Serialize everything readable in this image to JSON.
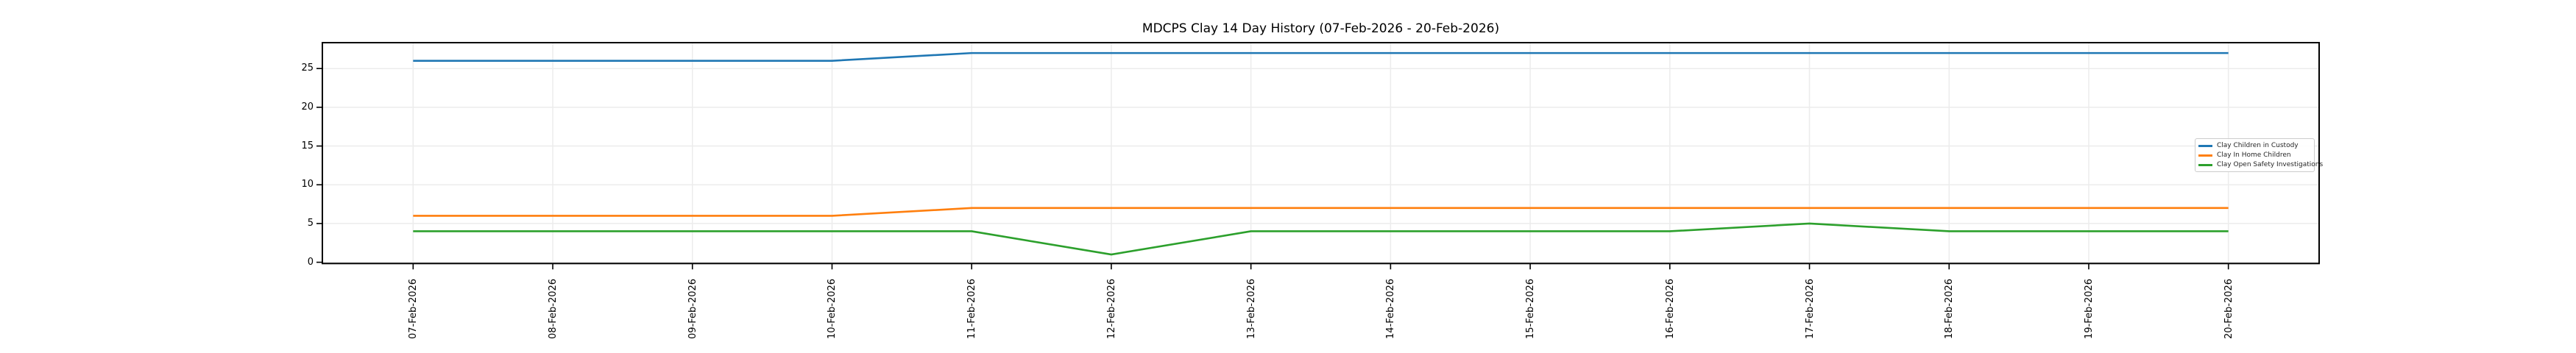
{
  "title": "MDCPS Clay 14 Day History (07-Feb-2026 - 20-Feb-2026)",
  "colors": {
    "background": "#ffffff",
    "spine": "#000000",
    "grid": "#ececec",
    "tick": "#000000",
    "legend_border": "#cccccc"
  },
  "chart_data": {
    "type": "line",
    "title": "MDCPS Clay 14 Day History (07-Feb-2026 - 20-Feb-2026)",
    "categories": [
      "07-Feb-2026",
      "08-Feb-2026",
      "09-Feb-2026",
      "10-Feb-2026",
      "11-Feb-2026",
      "12-Feb-2026",
      "13-Feb-2026",
      "14-Feb-2026",
      "15-Feb-2026",
      "16-Feb-2026",
      "17-Feb-2026",
      "18-Feb-2026",
      "19-Feb-2026",
      "20-Feb-2026"
    ],
    "series": [
      {
        "name": "Clay Children in Custody",
        "color": "#1f77b4",
        "values": [
          26,
          26,
          26,
          26,
          27,
          27,
          27,
          27,
          27,
          27,
          27,
          27,
          27,
          27
        ]
      },
      {
        "name": "Clay In Home Children",
        "color": "#ff7f0e",
        "values": [
          6,
          6,
          6,
          6,
          7,
          7,
          7,
          7,
          7,
          7,
          7,
          7,
          7,
          7
        ]
      },
      {
        "name": "Clay Open Safety Investigations",
        "color": "#2ca02c",
        "values": [
          4,
          4,
          4,
          4,
          4,
          1,
          4,
          4,
          4,
          4,
          5,
          4,
          4,
          4
        ]
      }
    ],
    "xlabel": "",
    "ylabel": "",
    "yticks": [
      0,
      5,
      10,
      15,
      20,
      25
    ],
    "ylim": [
      -0.16,
      28.34
    ],
    "xlim": [
      -0.65,
      13.65
    ],
    "x_tick_rotation": 90,
    "grid": true,
    "legend_position": "center right (inside plot)"
  }
}
